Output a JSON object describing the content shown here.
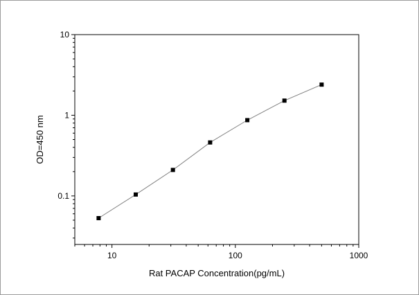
{
  "chart_data": {
    "type": "line",
    "title": "",
    "xlabel": "Rat PACAP Concentration(pg/mL)",
    "ylabel": "OD=450 nm",
    "xscale": "log",
    "yscale": "log",
    "xlim": [
      5,
      1000
    ],
    "ylim": [
      0.025,
      10
    ],
    "x_ticks": [
      10,
      100,
      1000
    ],
    "x_tick_labels": [
      "10",
      "100",
      "1000"
    ],
    "y_ticks": [
      0.1,
      1,
      10
    ],
    "y_tick_labels": [
      "0.1",
      "1",
      "10"
    ],
    "grid": false,
    "legend": "none",
    "series": [
      {
        "x": [
          7.8,
          15.6,
          31.2,
          62.5,
          125,
          250,
          500
        ],
        "y": [
          0.053,
          0.104,
          0.21,
          0.46,
          0.87,
          1.52,
          2.4
        ]
      }
    ],
    "colors": {
      "line": "#808080",
      "marker": "#000000",
      "axis": "#000000"
    }
  }
}
